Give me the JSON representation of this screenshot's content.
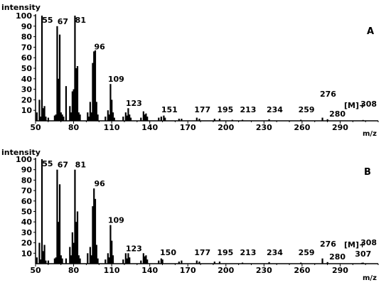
{
  "chart_data": [
    {
      "type": "bar",
      "title": "",
      "panel_label": "A",
      "ylabel": "intensity",
      "xlabel": "m/z",
      "ylim": [
        0,
        100
      ],
      "xlim": [
        50,
        320
      ],
      "x_ticks": [
        50,
        80,
        110,
        140,
        170,
        200,
        230,
        260,
        290
      ],
      "y_ticks": [
        10,
        20,
        30,
        40,
        50,
        60,
        70,
        80,
        90,
        100
      ],
      "molecular_ion_label": "[M]+",
      "peaks": [
        {
          "mz": 51,
          "value": 8
        },
        {
          "mz": 53,
          "value": 20
        },
        {
          "mz": 54,
          "value": 4
        },
        {
          "mz": 55,
          "value": 100
        },
        {
          "mz": 56,
          "value": 12
        },
        {
          "mz": 57,
          "value": 14
        },
        {
          "mz": 58,
          "value": 4
        },
        {
          "mz": 60,
          "value": 3
        },
        {
          "mz": 65,
          "value": 5
        },
        {
          "mz": 66,
          "value": 6
        },
        {
          "mz": 67,
          "value": 90
        },
        {
          "mz": 68,
          "value": 40
        },
        {
          "mz": 69,
          "value": 82
        },
        {
          "mz": 70,
          "value": 8
        },
        {
          "mz": 71,
          "value": 6
        },
        {
          "mz": 72,
          "value": 4
        },
        {
          "mz": 74,
          "value": 33
        },
        {
          "mz": 77,
          "value": 14
        },
        {
          "mz": 78,
          "value": 8
        },
        {
          "mz": 79,
          "value": 28
        },
        {
          "mz": 80,
          "value": 30
        },
        {
          "mz": 81,
          "value": 100
        },
        {
          "mz": 82,
          "value": 50
        },
        {
          "mz": 83,
          "value": 52
        },
        {
          "mz": 84,
          "value": 8
        },
        {
          "mz": 85,
          "value": 6
        },
        {
          "mz": 91,
          "value": 8
        },
        {
          "mz": 92,
          "value": 4
        },
        {
          "mz": 93,
          "value": 18
        },
        {
          "mz": 94,
          "value": 8
        },
        {
          "mz": 95,
          "value": 55
        },
        {
          "mz": 96,
          "value": 66
        },
        {
          "mz": 97,
          "value": 67
        },
        {
          "mz": 98,
          "value": 18
        },
        {
          "mz": 99,
          "value": 6
        },
        {
          "mz": 105,
          "value": 4
        },
        {
          "mz": 107,
          "value": 10
        },
        {
          "mz": 108,
          "value": 6
        },
        {
          "mz": 109,
          "value": 35
        },
        {
          "mz": 110,
          "value": 20
        },
        {
          "mz": 111,
          "value": 8
        },
        {
          "mz": 112,
          "value": 3
        },
        {
          "mz": 119,
          "value": 4
        },
        {
          "mz": 121,
          "value": 8
        },
        {
          "mz": 122,
          "value": 5
        },
        {
          "mz": 123,
          "value": 12
        },
        {
          "mz": 124,
          "value": 6
        },
        {
          "mz": 125,
          "value": 3
        },
        {
          "mz": 133,
          "value": 3
        },
        {
          "mz": 135,
          "value": 9
        },
        {
          "mz": 136,
          "value": 6
        },
        {
          "mz": 137,
          "value": 7
        },
        {
          "mz": 138,
          "value": 4
        },
        {
          "mz": 147,
          "value": 3
        },
        {
          "mz": 149,
          "value": 4
        },
        {
          "mz": 151,
          "value": 5
        },
        {
          "mz": 152,
          "value": 3
        },
        {
          "mz": 163,
          "value": 2
        },
        {
          "mz": 165,
          "value": 2
        },
        {
          "mz": 177,
          "value": 3
        },
        {
          "mz": 179,
          "value": 2
        },
        {
          "mz": 191,
          "value": 2
        },
        {
          "mz": 195,
          "value": 2
        },
        {
          "mz": 205,
          "value": 1
        },
        {
          "mz": 213,
          "value": 1
        },
        {
          "mz": 234,
          "value": 1.5
        },
        {
          "mz": 259,
          "value": 1
        },
        {
          "mz": 276,
          "value": 3
        },
        {
          "mz": 280,
          "value": 1.5
        },
        {
          "mz": 308,
          "value": 0.8
        }
      ],
      "labels": [
        {
          "mz": 55,
          "text": "55"
        },
        {
          "mz": 67,
          "text": "67"
        },
        {
          "mz": 81,
          "text": "81"
        },
        {
          "mz": 96,
          "text": "96"
        },
        {
          "mz": 109,
          "text": "109"
        },
        {
          "mz": 123,
          "text": "123"
        },
        {
          "mz": 151,
          "text": "151"
        },
        {
          "mz": 177,
          "text": "177"
        },
        {
          "mz": 195,
          "text": "195"
        },
        {
          "mz": 213,
          "text": "213"
        },
        {
          "mz": 234,
          "text": "234"
        },
        {
          "mz": 259,
          "text": "259"
        },
        {
          "mz": 276,
          "text": "276"
        },
        {
          "mz": 280,
          "text": "280"
        },
        {
          "mz": 308,
          "text": "308"
        }
      ]
    },
    {
      "type": "bar",
      "title": "",
      "panel_label": "B",
      "ylabel": "intensity",
      "xlabel": "m/z",
      "ylim": [
        0,
        100
      ],
      "xlim": [
        50,
        320
      ],
      "x_ticks": [
        50,
        80,
        110,
        140,
        170,
        200,
        230,
        260,
        290
      ],
      "y_ticks": [
        10,
        20,
        30,
        40,
        50,
        60,
        70,
        80,
        90,
        100
      ],
      "molecular_ion_label": "[M]+",
      "peaks": [
        {
          "mz": 51,
          "value": 6
        },
        {
          "mz": 53,
          "value": 20
        },
        {
          "mz": 54,
          "value": 4
        },
        {
          "mz": 55,
          "value": 100
        },
        {
          "mz": 56,
          "value": 12
        },
        {
          "mz": 57,
          "value": 18
        },
        {
          "mz": 58,
          "value": 3
        },
        {
          "mz": 60,
          "value": 3
        },
        {
          "mz": 65,
          "value": 5
        },
        {
          "mz": 66,
          "value": 6
        },
        {
          "mz": 67,
          "value": 90
        },
        {
          "mz": 68,
          "value": 40
        },
        {
          "mz": 69,
          "value": 76
        },
        {
          "mz": 70,
          "value": 8
        },
        {
          "mz": 71,
          "value": 5
        },
        {
          "mz": 74,
          "value": 5
        },
        {
          "mz": 77,
          "value": 16
        },
        {
          "mz": 78,
          "value": 8
        },
        {
          "mz": 79,
          "value": 30
        },
        {
          "mz": 80,
          "value": 20
        },
        {
          "mz": 81,
          "value": 90
        },
        {
          "mz": 82,
          "value": 40
        },
        {
          "mz": 83,
          "value": 50
        },
        {
          "mz": 84,
          "value": 8
        },
        {
          "mz": 85,
          "value": 5
        },
        {
          "mz": 91,
          "value": 10
        },
        {
          "mz": 93,
          "value": 16
        },
        {
          "mz": 94,
          "value": 8
        },
        {
          "mz": 95,
          "value": 55
        },
        {
          "mz": 96,
          "value": 72
        },
        {
          "mz": 97,
          "value": 62
        },
        {
          "mz": 98,
          "value": 18
        },
        {
          "mz": 99,
          "value": 5
        },
        {
          "mz": 105,
          "value": 4
        },
        {
          "mz": 107,
          "value": 10
        },
        {
          "mz": 108,
          "value": 6
        },
        {
          "mz": 109,
          "value": 37
        },
        {
          "mz": 110,
          "value": 22
        },
        {
          "mz": 111,
          "value": 8
        },
        {
          "mz": 119,
          "value": 4
        },
        {
          "mz": 121,
          "value": 10
        },
        {
          "mz": 122,
          "value": 5
        },
        {
          "mz": 123,
          "value": 10
        },
        {
          "mz": 124,
          "value": 6
        },
        {
          "mz": 133,
          "value": 3
        },
        {
          "mz": 135,
          "value": 10
        },
        {
          "mz": 136,
          "value": 7
        },
        {
          "mz": 137,
          "value": 8
        },
        {
          "mz": 138,
          "value": 4
        },
        {
          "mz": 147,
          "value": 3
        },
        {
          "mz": 149,
          "value": 5
        },
        {
          "mz": 150,
          "value": 4
        },
        {
          "mz": 163,
          "value": 2
        },
        {
          "mz": 165,
          "value": 3
        },
        {
          "mz": 177,
          "value": 3
        },
        {
          "mz": 179,
          "value": 2
        },
        {
          "mz": 191,
          "value": 2
        },
        {
          "mz": 195,
          "value": 2
        },
        {
          "mz": 213,
          "value": 1
        },
        {
          "mz": 234,
          "value": 1.5
        },
        {
          "mz": 259,
          "value": 1
        },
        {
          "mz": 276,
          "value": 5
        },
        {
          "mz": 280,
          "value": 1.5
        },
        {
          "mz": 307,
          "value": 0.8
        },
        {
          "mz": 308,
          "value": 1
        }
      ],
      "labels": [
        {
          "mz": 55,
          "text": "55"
        },
        {
          "mz": 67,
          "text": "67"
        },
        {
          "mz": 81,
          "text": "81"
        },
        {
          "mz": 96,
          "text": "96"
        },
        {
          "mz": 109,
          "text": "109"
        },
        {
          "mz": 123,
          "text": "123"
        },
        {
          "mz": 150,
          "text": "150"
        },
        {
          "mz": 177,
          "text": "177"
        },
        {
          "mz": 195,
          "text": "195"
        },
        {
          "mz": 213,
          "text": "213"
        },
        {
          "mz": 234,
          "text": "234"
        },
        {
          "mz": 259,
          "text": "259"
        },
        {
          "mz": 276,
          "text": "276"
        },
        {
          "mz": 280,
          "text": "280"
        },
        {
          "mz": 308,
          "text": "308"
        },
        {
          "mz": 307,
          "text": "307"
        }
      ]
    }
  ]
}
